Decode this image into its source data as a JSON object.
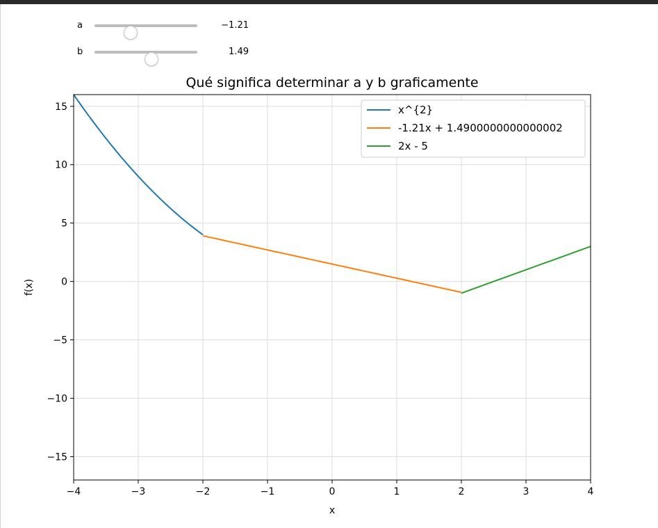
{
  "sliders": [
    {
      "label": "a",
      "value": -1.21,
      "display": "−1.21"
    },
    {
      "label": "b",
      "value": 1.49,
      "display": "1.49"
    }
  ],
  "chart_data": {
    "type": "line",
    "title": "Qué significa determinar a y b graficamente",
    "xlabel": "x",
    "ylabel": "f(x)",
    "xlim": [
      -4,
      4
    ],
    "ylim": [
      -17,
      16
    ],
    "xticks": [
      -4,
      -3,
      -2,
      -1,
      0,
      1,
      2,
      3,
      4
    ],
    "yticks": [
      -15,
      -10,
      -5,
      0,
      5,
      10,
      15
    ],
    "grid": true,
    "legend_position": "top-right",
    "series": [
      {
        "name": "x^{2}",
        "color": "#1f77b4",
        "expr": "x^2",
        "x_range": [
          -4,
          -2
        ]
      },
      {
        "name": "-1.21x + 1.4900000000000002",
        "color": "#ff7f0e",
        "expr": "-1.21x + 1.49",
        "x_range": [
          -2,
          2
        ]
      },
      {
        "name": "2x - 5",
        "color": "#2ca02c",
        "expr": "2x - 5",
        "x_range": [
          2,
          4
        ]
      }
    ]
  }
}
